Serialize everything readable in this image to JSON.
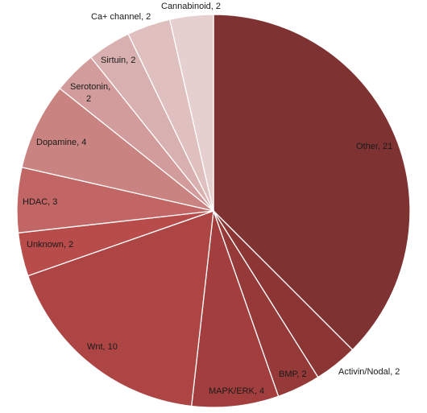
{
  "chart_data": {
    "type": "pie",
    "title": "",
    "start_angle_deg": 0,
    "direction": "clockwise",
    "slices": [
      {
        "label": "Other, 21",
        "name": "Other",
        "value": 21,
        "color": "#7f3232"
      },
      {
        "label": "Activin/Nodal, 2",
        "name": "Activin/Nodal",
        "value": 2,
        "color": "#8c3535"
      },
      {
        "label": "BMP, 2",
        "name": "BMP",
        "value": 2,
        "color": "#963a39"
      },
      {
        "label": "MAPK/ERK, 4",
        "name": "MAPK/ERK",
        "value": 4,
        "color": "#a23e3d"
      },
      {
        "label": "Wnt, 10",
        "name": "Wnt",
        "value": 10,
        "color": "#ad4544"
      },
      {
        "label": "Unknown, 2",
        "name": "Unknown",
        "value": 2,
        "color": "#b84c4a"
      },
      {
        "label": "HDAC, 3",
        "name": "HDAC",
        "value": 3,
        "color": "#c16664"
      },
      {
        "label": "Dopamine, 4",
        "name": "Dopamine",
        "value": 4,
        "color": "#c98381"
      },
      {
        "label": "Serotonin, 2",
        "name": "Serotonin",
        "value": 2,
        "color": "#d19c9b"
      },
      {
        "label": "Sirtuin, 2",
        "name": "Sirtuin",
        "value": 2,
        "color": "#d8b0af"
      },
      {
        "label": "Ca+ channel, 2",
        "name": "Ca+ channel",
        "value": 2,
        "color": "#dfc0bf"
      },
      {
        "label": "Cannabinoid, 2",
        "name": "Cannabinoid",
        "value": 2,
        "color": "#e6cfcf"
      }
    ]
  }
}
